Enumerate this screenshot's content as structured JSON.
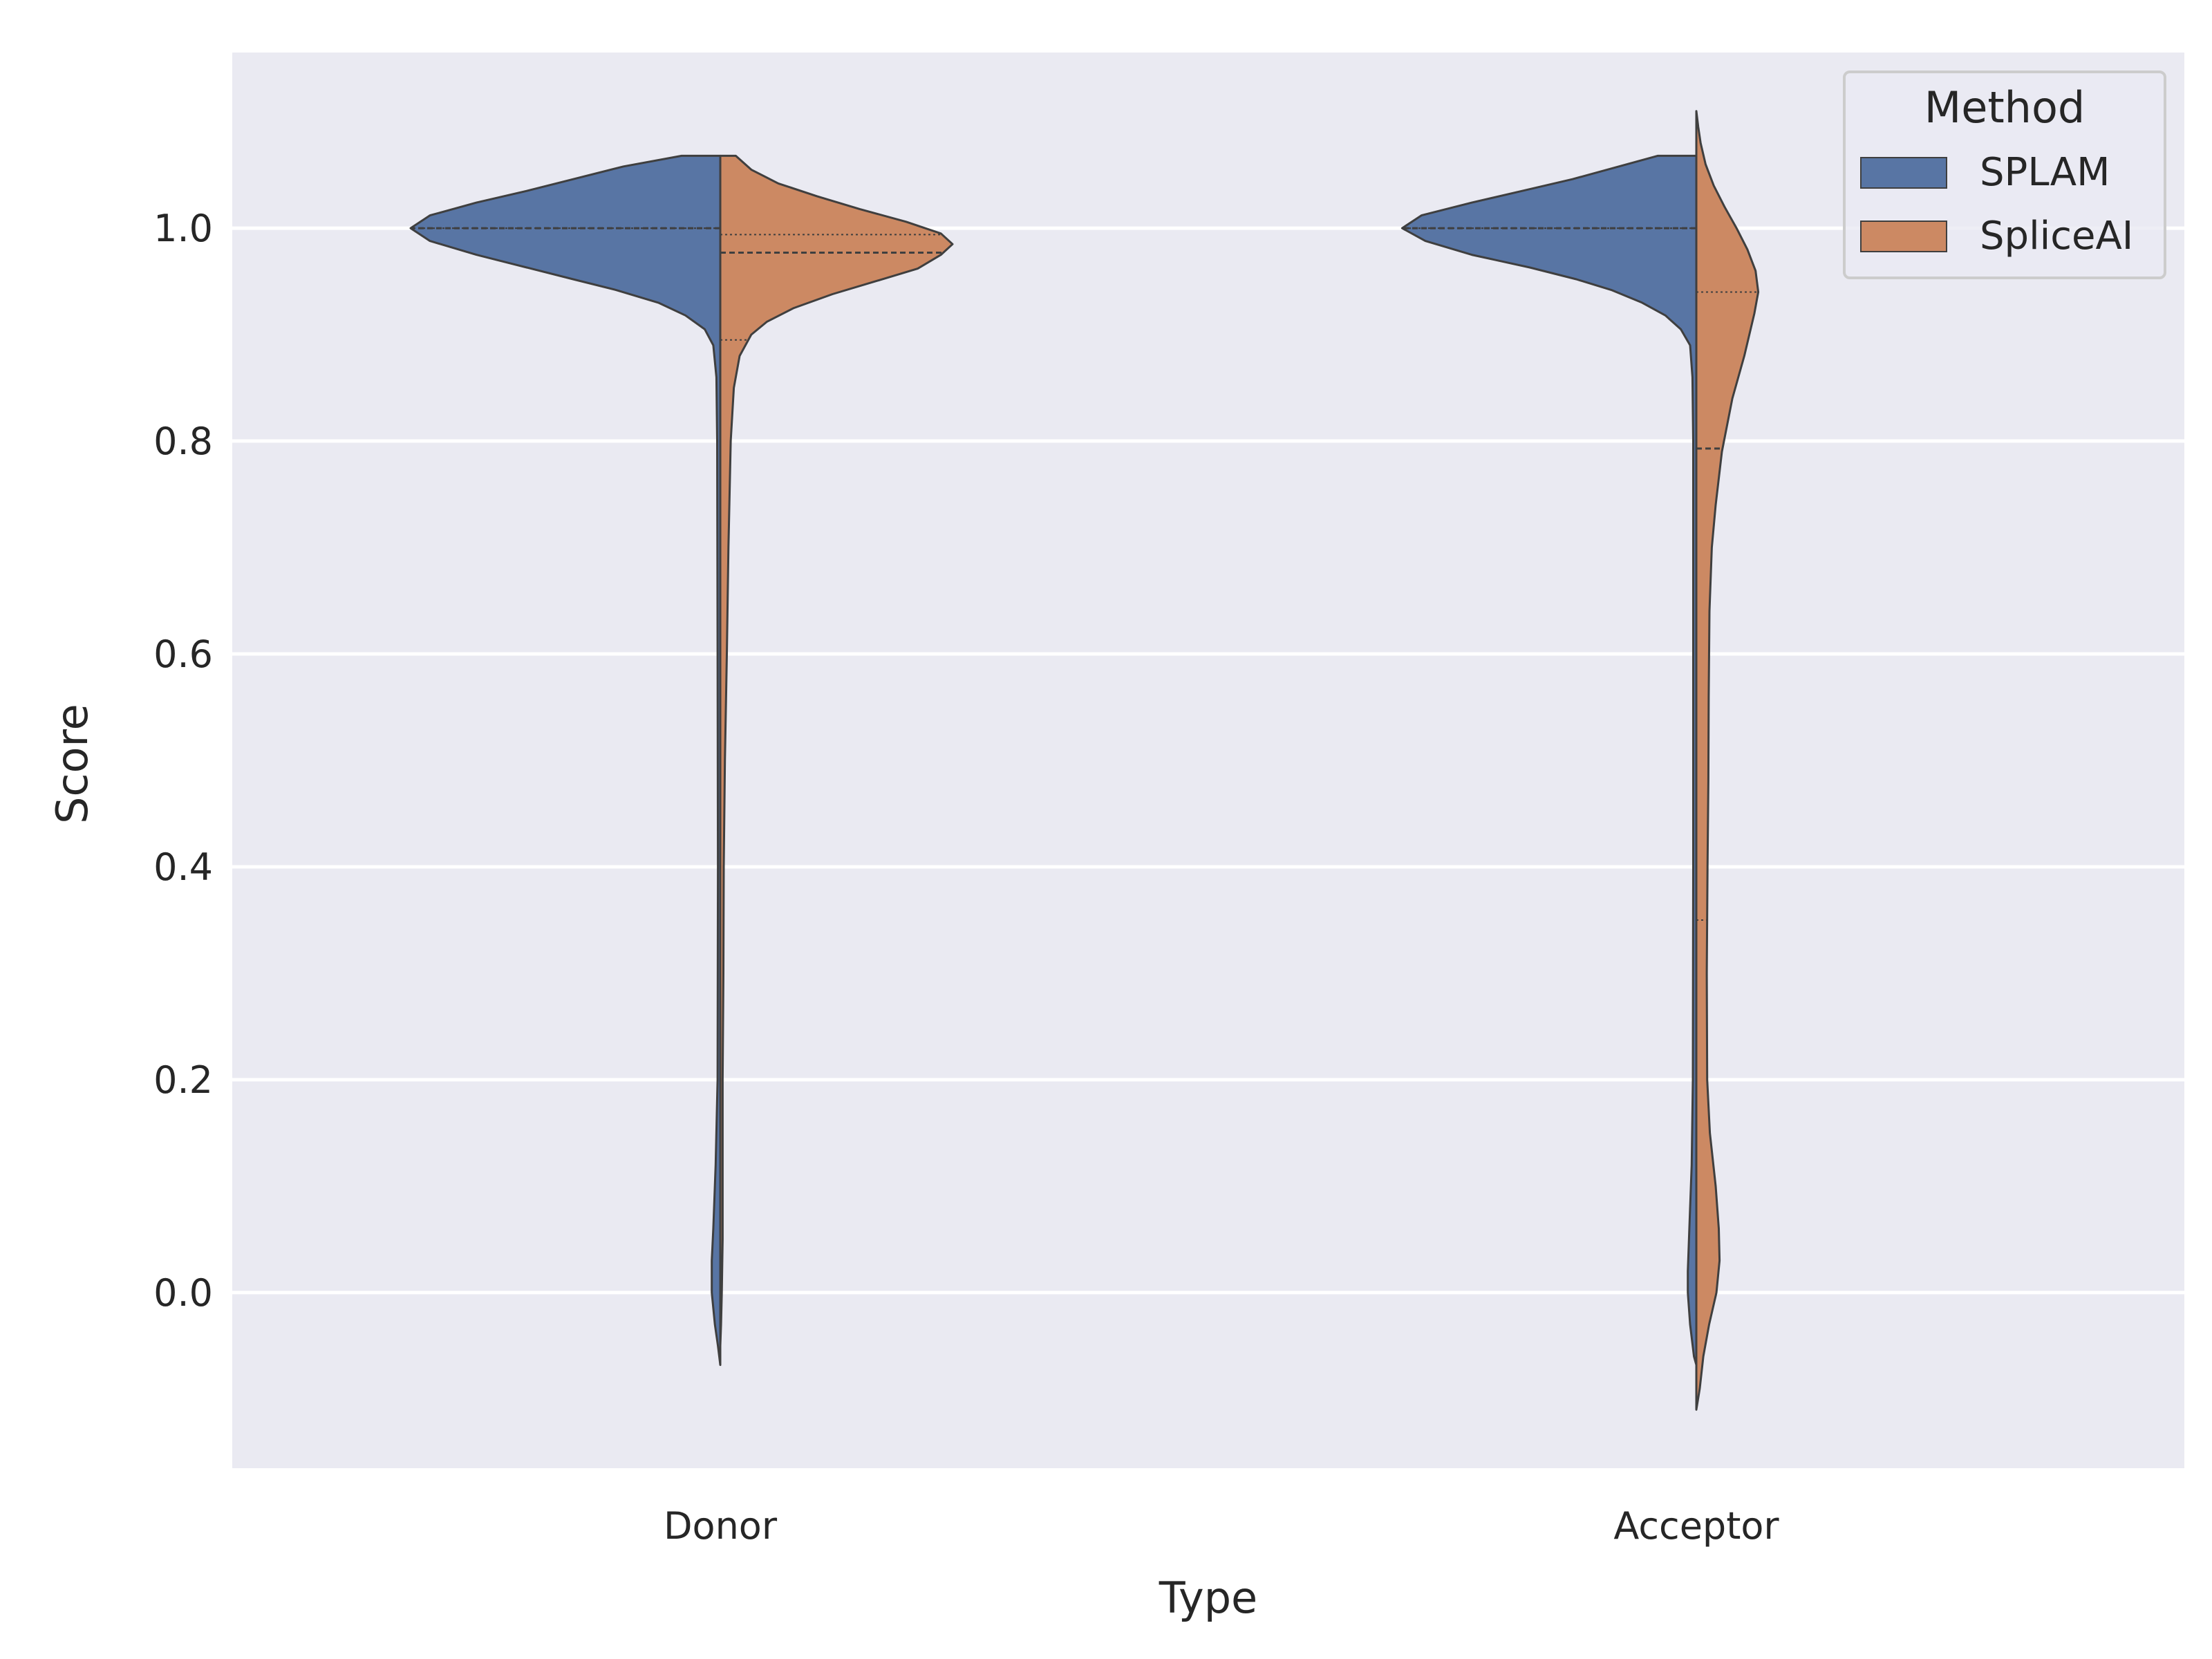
{
  "chart_data": {
    "type": "violin",
    "split": true,
    "inner": "quart",
    "xlabel": "Type",
    "ylabel": "Score",
    "ylim": [
      -0.165,
      1.165
    ],
    "yticks": [
      "0.0",
      "0.2",
      "0.4",
      "0.6",
      "0.8",
      "1.0"
    ],
    "ytick_values": [
      0.0,
      0.2,
      0.4,
      0.6,
      0.8,
      1.0
    ],
    "categories": [
      "Donor",
      "Acceptor"
    ],
    "grid": true,
    "legend": {
      "title": "Method",
      "position": "top-right",
      "entries": [
        {
          "name": "SPLAM",
          "color": "#5875a4"
        },
        {
          "name": "SpliceAI",
          "color": "#cc8963"
        }
      ]
    },
    "series": [
      {
        "name": "SPLAM",
        "color": "#5875a4",
        "side": "left",
        "violins": [
          {
            "category": "Donor",
            "profile": [
              [
                1.068,
                0.1
              ],
              [
                1.058,
                0.25
              ],
              [
                1.046,
                0.38
              ],
              [
                1.035,
                0.5
              ],
              [
                1.024,
                0.63
              ],
              [
                1.012,
                0.75
              ],
              [
                1.0,
                0.8
              ],
              [
                0.988,
                0.75
              ],
              [
                0.975,
                0.63
              ],
              [
                0.963,
                0.5
              ],
              [
                0.952,
                0.38
              ],
              [
                0.942,
                0.27
              ],
              [
                0.93,
                0.16
              ],
              [
                0.918,
                0.09
              ],
              [
                0.905,
                0.04
              ],
              [
                0.89,
                0.018
              ],
              [
                0.86,
                0.01
              ],
              [
                0.8,
                0.008
              ],
              [
                0.6,
                0.007
              ],
              [
                0.4,
                0.006
              ],
              [
                0.2,
                0.007
              ],
              [
                0.12,
                0.012
              ],
              [
                0.06,
                0.018
              ],
              [
                0.03,
                0.022
              ],
              [
                0.0,
                0.022
              ],
              [
                -0.03,
                0.014
              ],
              [
                -0.05,
                0.006
              ],
              [
                -0.068,
                0.0
              ]
            ],
            "quartiles": [
              1.0,
              1.0,
              1.0
            ]
          },
          {
            "category": "Acceptor",
            "profile": [
              [
                1.068,
                0.1
              ],
              [
                1.058,
                0.2
              ],
              [
                1.046,
                0.32
              ],
              [
                1.035,
                0.45
              ],
              [
                1.024,
                0.58
              ],
              [
                1.012,
                0.71
              ],
              [
                1.0,
                0.76
              ],
              [
                0.988,
                0.7
              ],
              [
                0.975,
                0.58
              ],
              [
                0.963,
                0.43
              ],
              [
                0.952,
                0.31
              ],
              [
                0.942,
                0.22
              ],
              [
                0.93,
                0.14
              ],
              [
                0.918,
                0.08
              ],
              [
                0.905,
                0.04
              ],
              [
                0.89,
                0.016
              ],
              [
                0.86,
                0.01
              ],
              [
                0.8,
                0.008
              ],
              [
                0.6,
                0.008
              ],
              [
                0.4,
                0.008
              ],
              [
                0.2,
                0.009
              ],
              [
                0.12,
                0.012
              ],
              [
                0.06,
                0.018
              ],
              [
                0.02,
                0.022
              ],
              [
                0.0,
                0.022
              ],
              [
                -0.03,
                0.016
              ],
              [
                -0.06,
                0.006
              ],
              [
                -0.068,
                0.0
              ]
            ],
            "quartiles": [
              1.0,
              1.0,
              1.0
            ]
          }
        ]
      },
      {
        "name": "SpliceAI",
        "color": "#cc8963",
        "side": "right",
        "violins": [
          {
            "category": "Donor",
            "profile": [
              [
                1.068,
                0.04
              ],
              [
                1.055,
                0.08
              ],
              [
                1.042,
                0.15
              ],
              [
                1.03,
                0.25
              ],
              [
                1.018,
                0.36
              ],
              [
                1.006,
                0.48
              ],
              [
                0.995,
                0.57
              ],
              [
                0.985,
                0.6
              ],
              [
                0.975,
                0.57
              ],
              [
                0.962,
                0.51
              ],
              [
                0.95,
                0.4
              ],
              [
                0.938,
                0.29
              ],
              [
                0.925,
                0.19
              ],
              [
                0.912,
                0.12
              ],
              [
                0.9,
                0.08
              ],
              [
                0.88,
                0.05
              ],
              [
                0.85,
                0.035
              ],
              [
                0.8,
                0.027
              ],
              [
                0.7,
                0.021
              ],
              [
                0.6,
                0.017
              ],
              [
                0.5,
                0.012
              ],
              [
                0.4,
                0.009
              ],
              [
                0.3,
                0.008
              ],
              [
                0.2,
                0.006
              ],
              [
                0.1,
                0.006
              ],
              [
                0.05,
                0.006
              ],
              [
                0.0,
                0.004
              ],
              [
                -0.03,
                0.002
              ],
              [
                -0.05,
                0.0
              ]
            ],
            "quartiles": [
              0.895,
              0.977,
              0.994
            ]
          },
          {
            "category": "Acceptor",
            "profile": [
              [
                1.11,
                0.0
              ],
              [
                1.095,
                0.005
              ],
              [
                1.08,
                0.011
              ],
              [
                1.06,
                0.024
              ],
              [
                1.04,
                0.045
              ],
              [
                1.02,
                0.073
              ],
              [
                1.0,
                0.104
              ],
              [
                0.98,
                0.132
              ],
              [
                0.96,
                0.153
              ],
              [
                0.94,
                0.16
              ],
              [
                0.92,
                0.15
              ],
              [
                0.88,
                0.124
              ],
              [
                0.84,
                0.093
              ],
              [
                0.79,
                0.066
              ],
              [
                0.74,
                0.05
              ],
              [
                0.7,
                0.04
              ],
              [
                0.64,
                0.034
              ],
              [
                0.56,
                0.032
              ],
              [
                0.48,
                0.031
              ],
              [
                0.4,
                0.029
              ],
              [
                0.3,
                0.027
              ],
              [
                0.2,
                0.028
              ],
              [
                0.15,
                0.035
              ],
              [
                0.1,
                0.05
              ],
              [
                0.06,
                0.058
              ],
              [
                0.03,
                0.06
              ],
              [
                0.0,
                0.052
              ],
              [
                -0.03,
                0.033
              ],
              [
                -0.06,
                0.018
              ],
              [
                -0.09,
                0.009
              ],
              [
                -0.11,
                0.0
              ]
            ],
            "quartiles": [
              0.35,
              0.793,
              0.94
            ]
          }
        ]
      }
    ]
  }
}
